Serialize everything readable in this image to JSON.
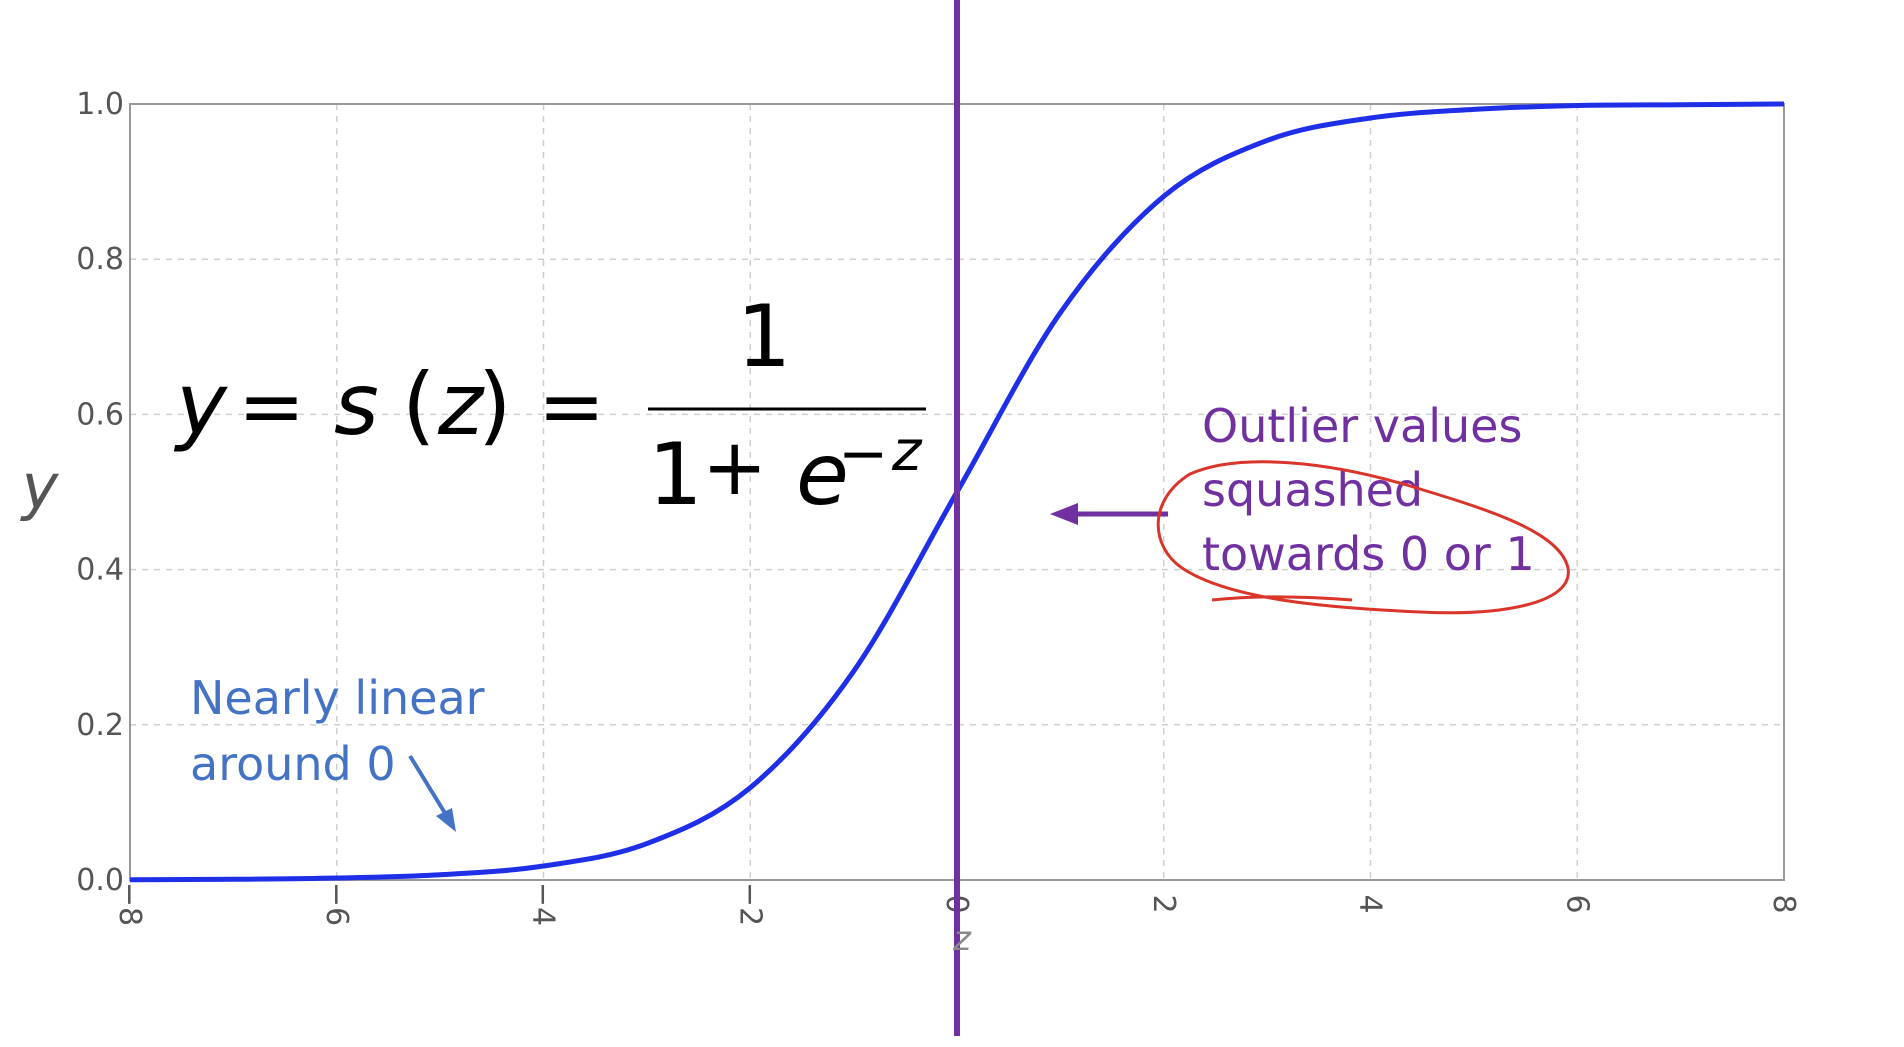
{
  "chart_data": {
    "type": "line",
    "title": "",
    "xlabel": "z",
    "ylabel": "y",
    "xlim": [
      -8,
      8
    ],
    "ylim": [
      0.0,
      1.0
    ],
    "grid": true,
    "x_ticks": [
      "−8",
      "−6",
      "−4",
      "−2",
      "0",
      "2",
      "4",
      "6",
      "8"
    ],
    "x_tick_values": [
      -8,
      -6,
      -4,
      -2,
      0,
      2,
      4,
      6,
      8
    ],
    "y_ticks": [
      "0.0",
      "0.2",
      "0.4",
      "0.6",
      "0.8",
      "1.0"
    ],
    "y_tick_values": [
      0.0,
      0.2,
      0.4,
      0.6,
      0.8,
      1.0
    ],
    "series": [
      {
        "x": [
          -8,
          -7,
          -6,
          -5,
          -4,
          -3,
          -2,
          -1,
          0,
          1,
          2,
          3,
          4,
          5,
          6,
          7,
          8
        ],
        "y": [
          0.0003,
          0.0009,
          0.0025,
          0.0067,
          0.018,
          0.047,
          0.119,
          0.269,
          0.5,
          0.731,
          0.881,
          0.953,
          0.982,
          0.993,
          0.998,
          0.999,
          1.0
        ],
        "color": "#1f2fe8"
      }
    ],
    "vertical_line": {
      "x": 0,
      "color": "#7030A0"
    },
    "colors": {
      "curve": "#1f2fe8",
      "vline": "#7030A0",
      "note_blue": "#4472C4",
      "note_purple": "#7030A0",
      "circle": "#d9352a",
      "axes": "#999999",
      "grid": "#cfcfcf"
    }
  },
  "formula": {
    "lhs": "y",
    "eq1": "=",
    "func": "s",
    "open": "(",
    "arg": "z",
    "close": ")",
    "eq2": "=",
    "numerator": "1",
    "denom_one": "1",
    "plus": "+",
    "e": "e",
    "minus": "−",
    "z": "z"
  },
  "annotations": {
    "left_note": [
      "Nearly linear",
      "around 0"
    ],
    "right_note": [
      "Outlier values",
      "squashed",
      "towards 0 or 1"
    ]
  }
}
